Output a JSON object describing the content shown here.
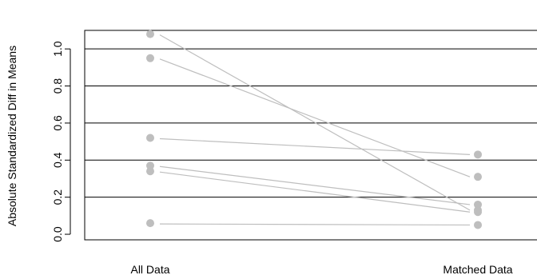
{
  "chart_data": {
    "type": "line",
    "ylabel": "Absolute Standardized Diff in Means",
    "categories": [
      "All Data",
      "Matched Data"
    ],
    "y_ticks": [
      "0.0",
      "0.2",
      "0.4",
      "0.6",
      "0.8",
      "1.0"
    ],
    "ylim": [
      -0.03,
      1.1
    ],
    "grid": {
      "horizontal_at": [
        0.2,
        0.4,
        0.6,
        0.8,
        1.0
      ]
    },
    "series": [
      {
        "values": [
          1.08,
          0.13
        ]
      },
      {
        "values": [
          0.95,
          0.31
        ]
      },
      {
        "values": [
          0.52,
          0.43
        ]
      },
      {
        "values": [
          0.37,
          0.16
        ]
      },
      {
        "values": [
          0.34,
          0.12
        ]
      },
      {
        "values": [
          0.06,
          0.05
        ]
      }
    ],
    "colors": {
      "marker": "#bebebe",
      "line": "#bebebe",
      "axis": "#000000"
    }
  }
}
